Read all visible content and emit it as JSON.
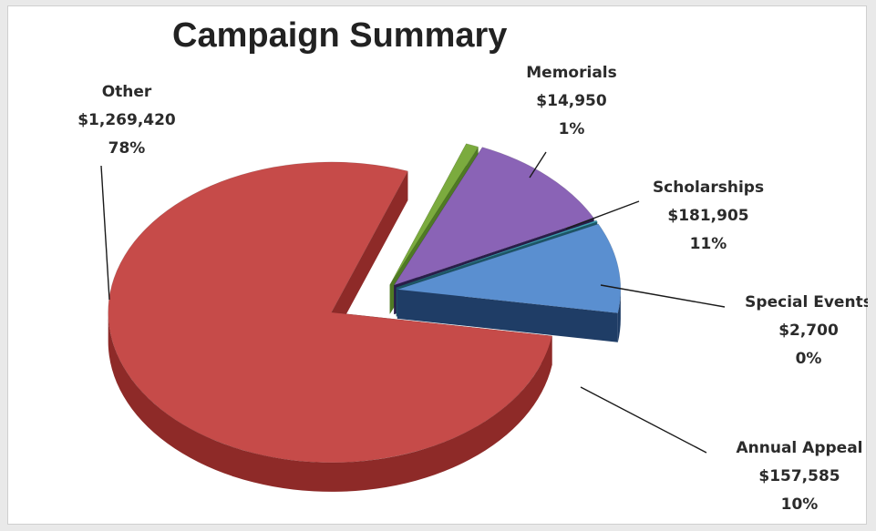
{
  "chart_data": {
    "type": "pie",
    "title": "Campaign Summary",
    "style": "3d-exploded",
    "slices": [
      {
        "label": "Memorials",
        "amount": "$14,950",
        "value": 14950,
        "percent": "1%",
        "color": "#7bab3e",
        "side_color": "#4f7a24"
      },
      {
        "label": "Scholarships",
        "amount": "$181,905",
        "value": 181905,
        "percent": "11%",
        "color": "#8a63b6",
        "side_color": "#2a1d4a"
      },
      {
        "label": "Special Events",
        "amount": "$2,700",
        "value": 2700,
        "percent": "0%",
        "color": "#3fa0b5",
        "side_color": "#1d5666"
      },
      {
        "label": "Annual Appeal",
        "amount": "$157,585",
        "value": 157585,
        "percent": "10%",
        "color": "#5a8fd0",
        "side_color": "#1f3d66"
      },
      {
        "label": "Other",
        "amount": "$1,269,420",
        "value": 1269420,
        "percent": "78%",
        "color": "#c64b49",
        "side_color": "#8e2a28"
      }
    ]
  }
}
